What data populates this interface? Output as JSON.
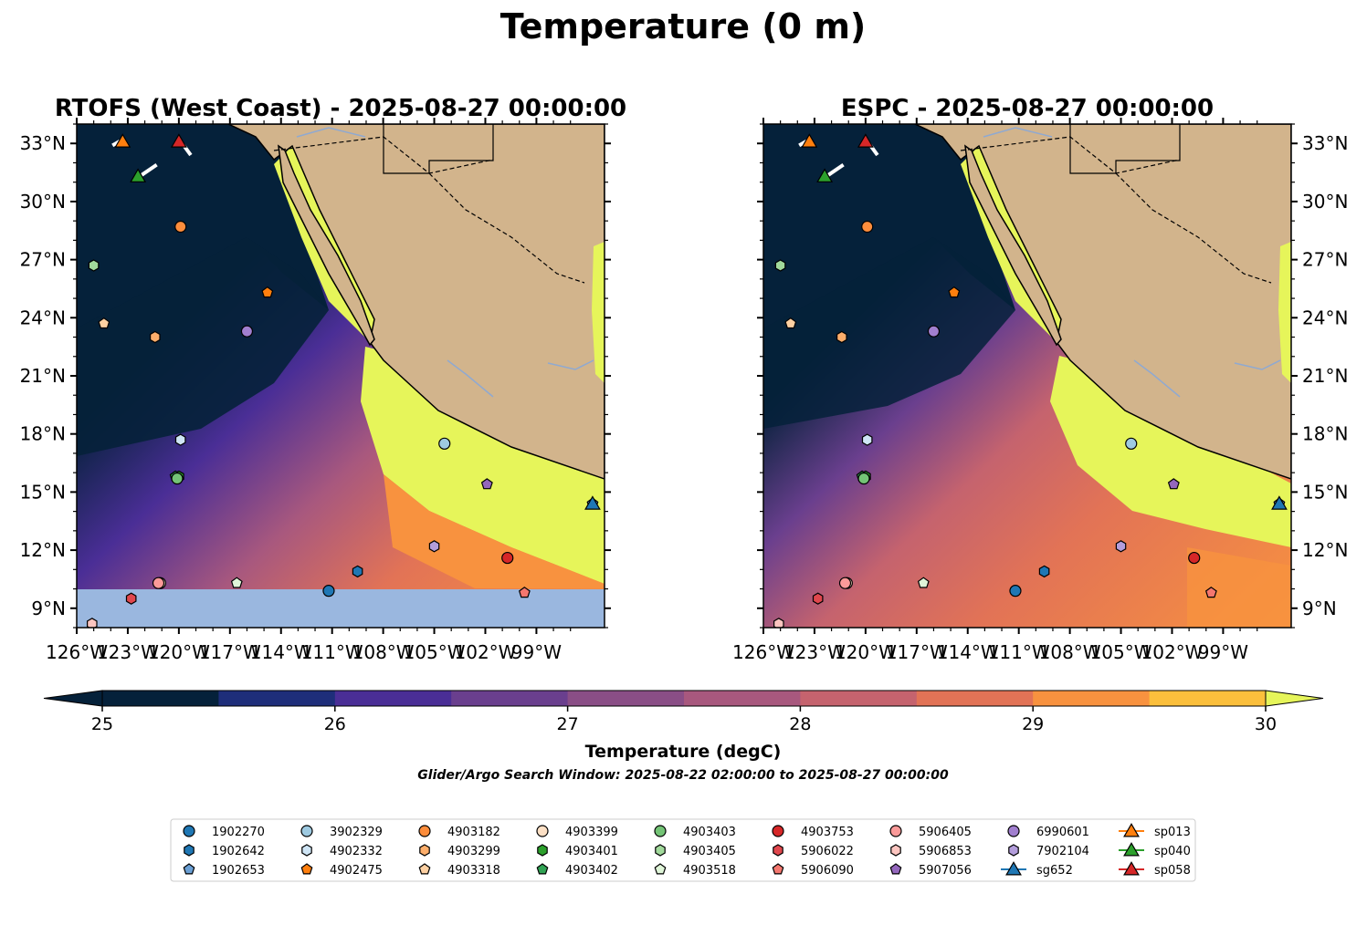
{
  "title": "Temperature (0 m)",
  "panels": [
    {
      "id": "rtofs",
      "title": "RTOFS (West Coast) - 2025-08-27 00:00:00",
      "lat_labels_side": "left"
    },
    {
      "id": "espc",
      "title": "ESPC - 2025-08-27 00:00:00",
      "lat_labels_side": "right"
    }
  ],
  "colorbar": {
    "label": "Temperature (degC)",
    "min": 25,
    "max": 30,
    "step": 0.5,
    "ticks": [
      "25",
      "26",
      "27",
      "28",
      "29",
      "30"
    ],
    "colors": [
      "#05213a",
      "#1e2e7a",
      "#4a2e96",
      "#6a3f8e",
      "#8a4e86",
      "#a8587e",
      "#c5636e",
      "#e27356",
      "#f8923f",
      "#fbbf3c",
      "#e6f55a"
    ]
  },
  "note": "Glider/Argo Search Window: 2025-08-22 02:00:00 to 2025-08-27 00:00:00",
  "colors": {
    "land": "#d2b48c",
    "nodata": "#9ab7df",
    "river": "#8fa9d1"
  },
  "chart_data": {
    "type": "map",
    "xlim": [
      -126,
      -95
    ],
    "ylim": [
      8,
      34
    ],
    "x_ticks": [
      -126,
      -123,
      -120,
      -117,
      -114,
      -111,
      -108,
      -105,
      -102,
      -99
    ],
    "x_tick_labels": [
      "126°W",
      "123°W",
      "120°W",
      "117°W",
      "114°W",
      "111°W",
      "108°W",
      "105°W",
      "102°W",
      "99°W"
    ],
    "y_ticks": [
      9,
      12,
      15,
      18,
      21,
      24,
      27,
      30,
      33
    ],
    "y_tick_labels": [
      "9°N",
      "12°N",
      "15°N",
      "18°N",
      "21°N",
      "24°N",
      "27°N",
      "30°N",
      "33°N"
    ],
    "floats": [
      {
        "id": "1902270",
        "lon": -111.2,
        "lat": 9.9,
        "marker": "circle",
        "color": "#1f77b4"
      },
      {
        "id": "1902642",
        "lon": -109.5,
        "lat": 10.9,
        "marker": "hexagon",
        "color": "#1f77b4"
      },
      {
        "id": "1902653",
        "lon": -95.7,
        "lat": 14.4,
        "marker": "pentagon",
        "color": "#6a9fd4"
      },
      {
        "id": "3902329",
        "lon": -104.4,
        "lat": 17.5,
        "marker": "circle",
        "color": "#9ecae1"
      },
      {
        "id": "4902332",
        "lon": -119.9,
        "lat": 17.7,
        "marker": "hexagon",
        "color": "#cfe5f5"
      },
      {
        "id": "4902475",
        "lon": -114.8,
        "lat": 25.3,
        "marker": "pentagon",
        "color": "#ff7f0e"
      },
      {
        "id": "4903182",
        "lon": -119.9,
        "lat": 28.7,
        "marker": "circle",
        "color": "#fd8d3c"
      },
      {
        "id": "4903299",
        "lon": -121.4,
        "lat": 23.0,
        "marker": "hexagon",
        "color": "#fdae6b"
      },
      {
        "id": "4903318",
        "lon": -124.4,
        "lat": 23.7,
        "marker": "pentagon",
        "color": "#fdd0a2"
      },
      {
        "id": "4903399",
        "lon": -121.1,
        "lat": 10.3,
        "marker": "circle",
        "color": "#fde0c5"
      },
      {
        "id": "4903401",
        "lon": -120.0,
        "lat": 15.8,
        "marker": "hexagon",
        "color": "#2ca02c"
      },
      {
        "id": "4903402",
        "lon": -120.2,
        "lat": 15.8,
        "marker": "pentagon",
        "color": "#31a354"
      },
      {
        "id": "4903403",
        "lon": -120.1,
        "lat": 15.7,
        "marker": "circle",
        "color": "#74c476"
      },
      {
        "id": "4903405",
        "lon": -125.0,
        "lat": 26.7,
        "marker": "hexagon",
        "color": "#a1d99b"
      },
      {
        "id": "4903518",
        "lon": -116.6,
        "lat": 10.3,
        "marker": "pentagon",
        "color": "#dff5d8"
      },
      {
        "id": "4903753",
        "lon": -100.7,
        "lat": 11.6,
        "marker": "circle",
        "color": "#d62728"
      },
      {
        "id": "5906022",
        "lon": -122.8,
        "lat": 9.5,
        "marker": "hexagon",
        "color": "#e0474d"
      },
      {
        "id": "5906090",
        "lon": -99.7,
        "lat": 9.8,
        "marker": "pentagon",
        "color": "#f4776f"
      },
      {
        "id": "5906405",
        "lon": -121.2,
        "lat": 10.3,
        "marker": "circle",
        "color": "#fb9a99"
      },
      {
        "id": "5906853",
        "lon": -125.1,
        "lat": 8.2,
        "marker": "hexagon",
        "color": "#fcc5c0"
      },
      {
        "id": "5907056",
        "lon": -101.9,
        "lat": 15.4,
        "marker": "pentagon",
        "color": "#9467bd"
      },
      {
        "id": "6990601",
        "lon": -116.0,
        "lat": 23.3,
        "marker": "circle",
        "color": "#a17fcf"
      },
      {
        "id": "7902104",
        "lon": -105.0,
        "lat": 12.2,
        "marker": "hexagon",
        "color": "#b39ddb"
      }
    ],
    "gliders": [
      {
        "id": "sg652",
        "lon": -95.7,
        "lat": 14.4,
        "color": "#1f77b4",
        "track": [
          [
            -95.9,
            14.3
          ],
          [
            -95.6,
            14.5
          ]
        ]
      },
      {
        "id": "sp013",
        "lon": -123.3,
        "lat": 33.1,
        "color": "#ff7f0e",
        "track": [
          [
            -123.9,
            32.9
          ],
          [
            -123.3,
            33.2
          ]
        ]
      },
      {
        "id": "sp040",
        "lon": -122.4,
        "lat": 31.3,
        "color": "#2ca02c",
        "track": [
          [
            -122.3,
            31.3
          ],
          [
            -121.3,
            31.9
          ]
        ]
      },
      {
        "id": "sp058",
        "lon": -120.0,
        "lat": 33.1,
        "color": "#d62728",
        "track": [
          [
            -119.8,
            33.0
          ],
          [
            -119.3,
            32.4
          ]
        ]
      }
    ]
  },
  "legend": [
    {
      "label": "1902270",
      "marker": "circle",
      "color": "#1f77b4"
    },
    {
      "label": "1902642",
      "marker": "hexagon",
      "color": "#1f77b4"
    },
    {
      "label": "1902653",
      "marker": "pentagon",
      "color": "#6a9fd4"
    },
    {
      "label": "3902329",
      "marker": "circle",
      "color": "#9ecae1"
    },
    {
      "label": "4902332",
      "marker": "hexagon",
      "color": "#cfe5f5"
    },
    {
      "label": "4902475",
      "marker": "pentagon",
      "color": "#ff7f0e"
    },
    {
      "label": "4903182",
      "marker": "circle",
      "color": "#fd8d3c"
    },
    {
      "label": "4903299",
      "marker": "hexagon",
      "color": "#fdae6b"
    },
    {
      "label": "4903318",
      "marker": "pentagon",
      "color": "#fdd0a2"
    },
    {
      "label": "4903399",
      "marker": "circle",
      "color": "#fde0c5"
    },
    {
      "label": "4903401",
      "marker": "hexagon",
      "color": "#2ca02c"
    },
    {
      "label": "4903402",
      "marker": "pentagon",
      "color": "#31a354"
    },
    {
      "label": "4903403",
      "marker": "circle",
      "color": "#74c476"
    },
    {
      "label": "4903405",
      "marker": "hexagon",
      "color": "#a1d99b"
    },
    {
      "label": "4903518",
      "marker": "pentagon",
      "color": "#dff5d8"
    },
    {
      "label": "4903753",
      "marker": "circle",
      "color": "#d62728"
    },
    {
      "label": "5906022",
      "marker": "hexagon",
      "color": "#e0474d"
    },
    {
      "label": "5906090",
      "marker": "pentagon",
      "color": "#f4776f"
    },
    {
      "label": "5906405",
      "marker": "circle",
      "color": "#fb9a99"
    },
    {
      "label": "5906853",
      "marker": "hexagon",
      "color": "#fcc5c0"
    },
    {
      "label": "5907056",
      "marker": "pentagon",
      "color": "#9467bd"
    },
    {
      "label": "6990601",
      "marker": "circle",
      "color": "#a17fcf"
    },
    {
      "label": "7902104",
      "marker": "hexagon",
      "color": "#b39ddb"
    },
    {
      "label": "sg652",
      "marker": "triangle-line",
      "color": "#1f77b4"
    },
    {
      "label": "sp013",
      "marker": "triangle-line",
      "color": "#ff7f0e"
    },
    {
      "label": "sp040",
      "marker": "triangle-line",
      "color": "#2ca02c"
    },
    {
      "label": "sp058",
      "marker": "triangle-line",
      "color": "#d62728"
    }
  ]
}
